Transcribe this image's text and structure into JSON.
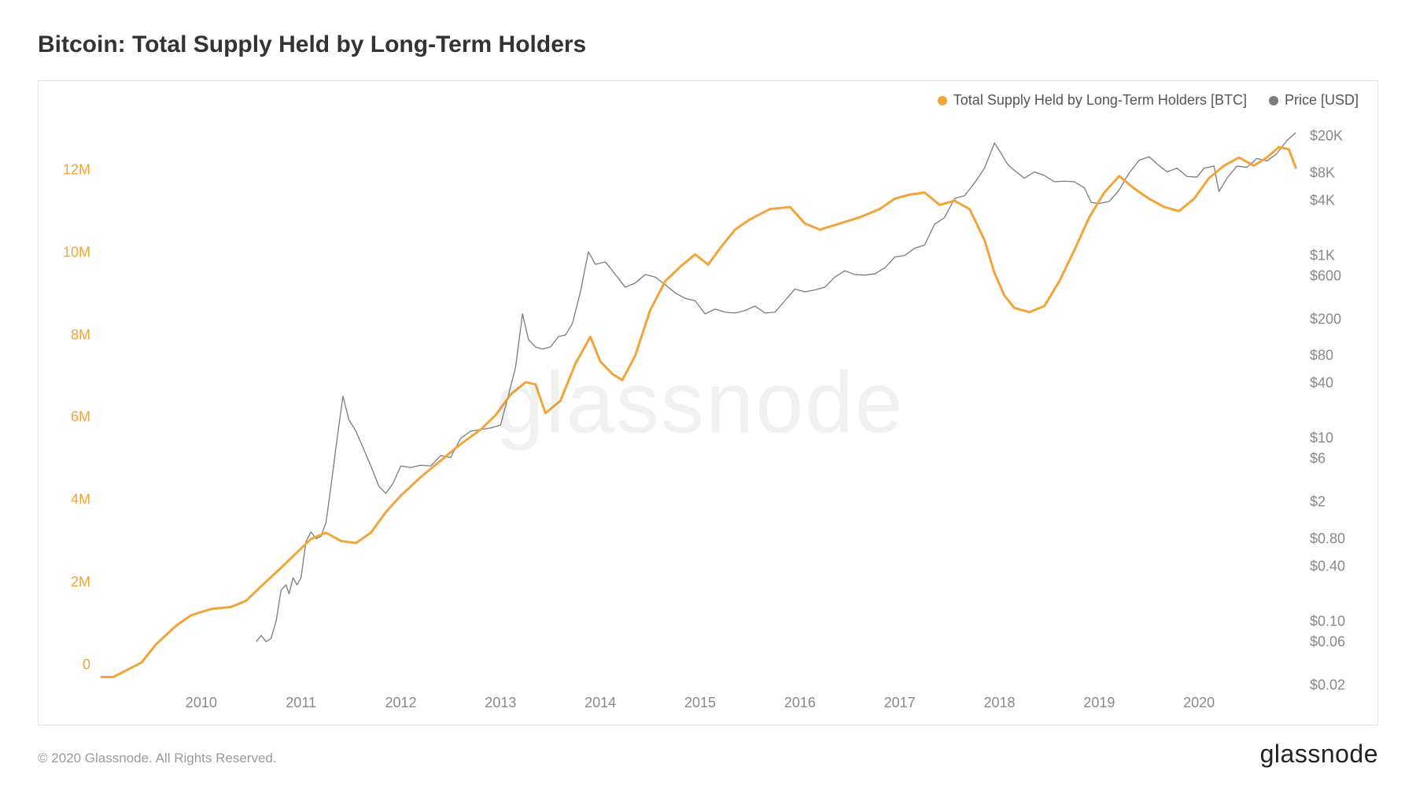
{
  "title": "Bitcoin: Total Supply Held by Long-Term Holders",
  "legend": {
    "series1": {
      "label": "Total Supply Held by Long-Term Holders [BTC]",
      "color": "#f2a33a"
    },
    "series2": {
      "label": "Price [USD]",
      "color": "#7b7b7b"
    }
  },
  "watermark": "glassnode",
  "copyright": "© 2020 Glassnode. All Rights Reserved.",
  "brand": "glassnode",
  "chart": {
    "type": "line",
    "background_color": "#ffffff",
    "border_color": "#e5e5e5",
    "x_axis": {
      "domain_years": [
        2009.0,
        2021.0
      ],
      "ticks": [
        2010,
        2011,
        2012,
        2013,
        2014,
        2015,
        2016,
        2017,
        2018,
        2019,
        2020
      ],
      "tick_labels": [
        "2010",
        "2011",
        "2012",
        "2013",
        "2014",
        "2015",
        "2016",
        "2017",
        "2018",
        "2019",
        "2020"
      ],
      "label_color": "#888888",
      "label_fontsize": 18
    },
    "y_left": {
      "scale": "linear",
      "domain": [
        -0.5,
        13.2
      ],
      "ticks": [
        0,
        2,
        4,
        6,
        8,
        10,
        12
      ],
      "tick_labels": [
        "0",
        "2M",
        "4M",
        "6M",
        "8M",
        "10M",
        "12M"
      ],
      "label_color": "#f2a33a",
      "label_fontsize": 18
    },
    "y_right": {
      "scale": "log",
      "domain": [
        0.02,
        30000
      ],
      "ticks": [
        0.02,
        0.06,
        0.1,
        0.4,
        0.8,
        2,
        6,
        10,
        40,
        80,
        200,
        600,
        1000,
        4000,
        8000,
        20000
      ],
      "tick_labels": [
        "$0.02",
        "$0.06",
        "$0.10",
        "$0.40",
        "$0.80",
        "$2",
        "$6",
        "$10",
        "$40",
        "$80",
        "$200",
        "$600",
        "$1K",
        "$4K",
        "$8K",
        "$20K"
      ],
      "label_color": "#888888",
      "label_fontsize": 18
    },
    "series_supply": {
      "color": "#f2a33a",
      "line_width": 3,
      "data": [
        [
          2009.0,
          -0.3
        ],
        [
          2009.12,
          -0.3
        ],
        [
          2009.4,
          0.05
        ],
        [
          2009.55,
          0.5
        ],
        [
          2009.75,
          0.95
        ],
        [
          2009.9,
          1.2
        ],
        [
          2010.1,
          1.35
        ],
        [
          2010.3,
          1.4
        ],
        [
          2010.45,
          1.55
        ],
        [
          2010.6,
          1.9
        ],
        [
          2010.8,
          2.35
        ],
        [
          2010.95,
          2.7
        ],
        [
          2011.1,
          3.05
        ],
        [
          2011.25,
          3.2
        ],
        [
          2011.4,
          3.0
        ],
        [
          2011.55,
          2.95
        ],
        [
          2011.7,
          3.2
        ],
        [
          2011.85,
          3.7
        ],
        [
          2012.0,
          4.1
        ],
        [
          2012.2,
          4.55
        ],
        [
          2012.4,
          4.95
        ],
        [
          2012.6,
          5.35
        ],
        [
          2012.8,
          5.7
        ],
        [
          2012.95,
          6.05
        ],
        [
          2013.1,
          6.55
        ],
        [
          2013.25,
          6.85
        ],
        [
          2013.35,
          6.8
        ],
        [
          2013.45,
          6.1
        ],
        [
          2013.6,
          6.4
        ],
        [
          2013.75,
          7.3
        ],
        [
          2013.9,
          7.95
        ],
        [
          2014.0,
          7.35
        ],
        [
          2014.12,
          7.05
        ],
        [
          2014.22,
          6.9
        ],
        [
          2014.35,
          7.5
        ],
        [
          2014.5,
          8.6
        ],
        [
          2014.65,
          9.3
        ],
        [
          2014.8,
          9.65
        ],
        [
          2014.95,
          9.95
        ],
        [
          2015.08,
          9.7
        ],
        [
          2015.2,
          10.1
        ],
        [
          2015.35,
          10.55
        ],
        [
          2015.5,
          10.8
        ],
        [
          2015.7,
          11.05
        ],
        [
          2015.9,
          11.1
        ],
        [
          2016.05,
          10.7
        ],
        [
          2016.2,
          10.55
        ],
        [
          2016.4,
          10.7
        ],
        [
          2016.6,
          10.85
        ],
        [
          2016.8,
          11.05
        ],
        [
          2016.95,
          11.3
        ],
        [
          2017.1,
          11.4
        ],
        [
          2017.25,
          11.45
        ],
        [
          2017.4,
          11.15
        ],
        [
          2017.55,
          11.25
        ],
        [
          2017.7,
          11.05
        ],
        [
          2017.85,
          10.3
        ],
        [
          2017.95,
          9.5
        ],
        [
          2018.05,
          8.95
        ],
        [
          2018.15,
          8.65
        ],
        [
          2018.3,
          8.55
        ],
        [
          2018.45,
          8.7
        ],
        [
          2018.6,
          9.3
        ],
        [
          2018.75,
          10.05
        ],
        [
          2018.9,
          10.85
        ],
        [
          2019.05,
          11.45
        ],
        [
          2019.2,
          11.85
        ],
        [
          2019.35,
          11.55
        ],
        [
          2019.5,
          11.3
        ],
        [
          2019.65,
          11.1
        ],
        [
          2019.8,
          11.0
        ],
        [
          2019.95,
          11.3
        ],
        [
          2020.1,
          11.8
        ],
        [
          2020.25,
          12.1
        ],
        [
          2020.4,
          12.3
        ],
        [
          2020.55,
          12.1
        ],
        [
          2020.68,
          12.3
        ],
        [
          2020.8,
          12.55
        ],
        [
          2020.9,
          12.5
        ],
        [
          2020.97,
          12.05
        ]
      ]
    },
    "series_price": {
      "color": "#7b7b7b",
      "line_width": 1.3,
      "data": [
        [
          2010.55,
          0.06
        ],
        [
          2010.6,
          0.07
        ],
        [
          2010.65,
          0.06
        ],
        [
          2010.7,
          0.065
        ],
        [
          2010.75,
          0.1
        ],
        [
          2010.8,
          0.22
        ],
        [
          2010.85,
          0.25
        ],
        [
          2010.88,
          0.2
        ],
        [
          2010.92,
          0.3
        ],
        [
          2010.96,
          0.25
        ],
        [
          2011.0,
          0.3
        ],
        [
          2011.05,
          0.75
        ],
        [
          2011.1,
          0.95
        ],
        [
          2011.15,
          0.8
        ],
        [
          2011.2,
          0.85
        ],
        [
          2011.25,
          1.2
        ],
        [
          2011.3,
          3.0
        ],
        [
          2011.35,
          8.0
        ],
        [
          2011.42,
          29.0
        ],
        [
          2011.48,
          16.0
        ],
        [
          2011.55,
          12.0
        ],
        [
          2011.62,
          8.0
        ],
        [
          2011.7,
          5.0
        ],
        [
          2011.78,
          3.0
        ],
        [
          2011.85,
          2.5
        ],
        [
          2011.92,
          3.2
        ],
        [
          2012.0,
          5.0
        ],
        [
          2012.1,
          4.8
        ],
        [
          2012.2,
          5.1
        ],
        [
          2012.3,
          5.0
        ],
        [
          2012.4,
          6.5
        ],
        [
          2012.5,
          6.2
        ],
        [
          2012.6,
          10.0
        ],
        [
          2012.7,
          12.0
        ],
        [
          2012.8,
          12.5
        ],
        [
          2012.9,
          13.0
        ],
        [
          2013.0,
          14.0
        ],
        [
          2013.08,
          30.0
        ],
        [
          2013.15,
          60.0
        ],
        [
          2013.22,
          230.0
        ],
        [
          2013.28,
          120.0
        ],
        [
          2013.35,
          100.0
        ],
        [
          2013.42,
          95.0
        ],
        [
          2013.5,
          100.0
        ],
        [
          2013.58,
          130.0
        ],
        [
          2013.65,
          135.0
        ],
        [
          2013.72,
          180.0
        ],
        [
          2013.8,
          400.0
        ],
        [
          2013.88,
          1100.0
        ],
        [
          2013.95,
          800.0
        ],
        [
          2014.05,
          850.0
        ],
        [
          2014.15,
          620.0
        ],
        [
          2014.25,
          450.0
        ],
        [
          2014.35,
          500.0
        ],
        [
          2014.45,
          620.0
        ],
        [
          2014.55,
          580.0
        ],
        [
          2014.65,
          480.0
        ],
        [
          2014.75,
          390.0
        ],
        [
          2014.85,
          340.0
        ],
        [
          2014.95,
          320.0
        ],
        [
          2015.05,
          230.0
        ],
        [
          2015.15,
          260.0
        ],
        [
          2015.25,
          240.0
        ],
        [
          2015.35,
          235.0
        ],
        [
          2015.45,
          250.0
        ],
        [
          2015.55,
          280.0
        ],
        [
          2015.65,
          235.0
        ],
        [
          2015.75,
          240.0
        ],
        [
          2015.85,
          320.0
        ],
        [
          2015.95,
          430.0
        ],
        [
          2016.05,
          400.0
        ],
        [
          2016.15,
          420.0
        ],
        [
          2016.25,
          450.0
        ],
        [
          2016.35,
          580.0
        ],
        [
          2016.45,
          680.0
        ],
        [
          2016.55,
          620.0
        ],
        [
          2016.65,
          610.0
        ],
        [
          2016.75,
          630.0
        ],
        [
          2016.85,
          730.0
        ],
        [
          2016.95,
          960.0
        ],
        [
          2017.05,
          1000.0
        ],
        [
          2017.15,
          1200.0
        ],
        [
          2017.25,
          1300.0
        ],
        [
          2017.35,
          2200.0
        ],
        [
          2017.45,
          2600.0
        ],
        [
          2017.55,
          4200.0
        ],
        [
          2017.65,
          4500.0
        ],
        [
          2017.75,
          6200.0
        ],
        [
          2017.85,
          9000.0
        ],
        [
          2017.95,
          17000.0
        ],
        [
          2018.0,
          14000.0
        ],
        [
          2018.08,
          10000.0
        ],
        [
          2018.15,
          8500.0
        ],
        [
          2018.25,
          7000.0
        ],
        [
          2018.35,
          8200.0
        ],
        [
          2018.45,
          7500.0
        ],
        [
          2018.55,
          6400.0
        ],
        [
          2018.65,
          6500.0
        ],
        [
          2018.75,
          6400.0
        ],
        [
          2018.85,
          5500.0
        ],
        [
          2018.92,
          3800.0
        ],
        [
          2019.0,
          3700.0
        ],
        [
          2019.1,
          3900.0
        ],
        [
          2019.2,
          5200.0
        ],
        [
          2019.3,
          8000.0
        ],
        [
          2019.4,
          11000.0
        ],
        [
          2019.5,
          12000.0
        ],
        [
          2019.58,
          10000.0
        ],
        [
          2019.68,
          8200.0
        ],
        [
          2019.78,
          9000.0
        ],
        [
          2019.88,
          7300.0
        ],
        [
          2019.98,
          7200.0
        ],
        [
          2020.05,
          9000.0
        ],
        [
          2020.15,
          9500.0
        ],
        [
          2020.2,
          5000.0
        ],
        [
          2020.28,
          7000.0
        ],
        [
          2020.38,
          9500.0
        ],
        [
          2020.48,
          9200.0
        ],
        [
          2020.58,
          11500.0
        ],
        [
          2020.68,
          10800.0
        ],
        [
          2020.78,
          13000.0
        ],
        [
          2020.88,
          18000.0
        ],
        [
          2020.97,
          22000.0
        ]
      ]
    }
  }
}
